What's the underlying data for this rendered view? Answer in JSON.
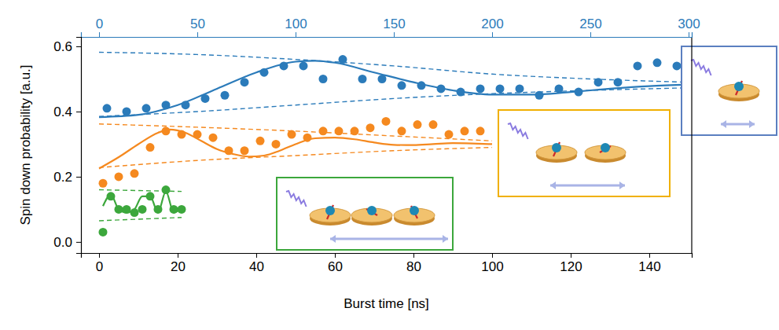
{
  "chart_data": {
    "type": "scatter",
    "x_label": "Burst time [ns]",
    "y_label": "Spin down probability [a.u.]",
    "xlim": [
      -4.6,
      150.8
    ],
    "xticks": [
      0,
      20,
      40,
      60,
      80,
      100,
      120,
      140
    ],
    "x2lim": [
      -9.2,
      301.6
    ],
    "x2ticks": [
      0,
      50,
      100,
      150,
      200,
      250,
      300
    ],
    "x2_color": "#2b7bba",
    "ylim": [
      -0.034,
      0.629
    ],
    "yticks": [
      {
        "value": 0,
        "label": "0.0"
      },
      0.2,
      0.4,
      0.6
    ],
    "series": [
      {
        "type": "line",
        "line_style": "dashed",
        "color": "#2b7bba",
        "axis": "x2",
        "x": [
          0,
          50,
          100,
          150,
          200,
          250,
          300
        ],
        "values": [
          0.582,
          0.575,
          0.56,
          0.54,
          0.515,
          0.5,
          0.49
        ]
      },
      {
        "type": "line",
        "line_style": "dashed",
        "color": "#2b7bba",
        "axis": "x2",
        "x": [
          0,
          50,
          100,
          150,
          200,
          250,
          300
        ],
        "values": [
          0.385,
          0.4,
          0.42,
          0.44,
          0.455,
          0.465,
          0.473
        ]
      },
      {
        "type": "line",
        "line_style": "solid",
        "color": "#2b7bba",
        "axis": "x2",
        "x": [
          0,
          20,
          40,
          60,
          80,
          100,
          110,
          120,
          140,
          160,
          180,
          200,
          220,
          240,
          260,
          280,
          300
        ],
        "values": [
          0.383,
          0.39,
          0.42,
          0.47,
          0.52,
          0.553,
          0.556,
          0.55,
          0.52,
          0.49,
          0.465,
          0.452,
          0.452,
          0.46,
          0.47,
          0.478,
          0.483
        ]
      },
      {
        "type": "scatter",
        "marker": "circle",
        "color": "#2b7bba",
        "axis": "x2",
        "x": [
          4,
          14,
          24,
          34,
          44,
          54,
          64,
          74,
          84,
          94,
          104,
          114,
          124,
          134,
          144,
          154,
          164,
          174,
          184,
          194,
          204,
          214,
          224,
          234,
          244,
          254,
          264,
          274,
          284,
          294
        ],
        "values": [
          0.41,
          0.4,
          0.41,
          0.42,
          0.42,
          0.44,
          0.45,
          0.49,
          0.52,
          0.54,
          0.54,
          0.5,
          0.56,
          0.5,
          0.5,
          0.48,
          0.48,
          0.47,
          0.46,
          0.47,
          0.47,
          0.47,
          0.45,
          0.47,
          0.46,
          0.49,
          0.49,
          0.54,
          0.55,
          0.54
        ]
      },
      {
        "type": "line",
        "line_style": "dashed",
        "color": "#f5891f",
        "x": [
          0,
          25,
          50,
          75,
          100
        ],
        "values": [
          0.362,
          0.352,
          0.34,
          0.325,
          0.31
        ]
      },
      {
        "type": "line",
        "line_style": "dashed",
        "color": "#f5891f",
        "x": [
          0,
          25,
          50,
          75,
          100
        ],
        "values": [
          0.228,
          0.25,
          0.265,
          0.28,
          0.29
        ]
      },
      {
        "type": "line",
        "line_style": "solid",
        "color": "#f5891f",
        "x": [
          0,
          5,
          10,
          15,
          18,
          22,
          26,
          30,
          34,
          38,
          42,
          46,
          50,
          55,
          60,
          65,
          70,
          75,
          80,
          85,
          90,
          95,
          100
        ],
        "values": [
          0.225,
          0.26,
          0.3,
          0.335,
          0.345,
          0.335,
          0.31,
          0.285,
          0.27,
          0.262,
          0.265,
          0.28,
          0.3,
          0.318,
          0.32,
          0.315,
          0.305,
          0.298,
          0.297,
          0.3,
          0.303,
          0.302,
          0.3
        ]
      },
      {
        "type": "scatter",
        "marker": "circle",
        "color": "#f5891f",
        "x": [
          1,
          5,
          9,
          13,
          17,
          21,
          25,
          29,
          33,
          37,
          41,
          45,
          49,
          53,
          57,
          61,
          65,
          69,
          73,
          77,
          81,
          85,
          89,
          93,
          97
        ],
        "values": [
          0.18,
          0.2,
          0.21,
          0.29,
          0.34,
          0.33,
          0.33,
          0.32,
          0.28,
          0.28,
          0.31,
          0.3,
          0.33,
          0.32,
          0.34,
          0.34,
          0.34,
          0.35,
          0.37,
          0.34,
          0.36,
          0.36,
          0.33,
          0.34,
          0.34
        ]
      },
      {
        "type": "line",
        "line_style": "dashed",
        "color": "#3ca73c",
        "x": [
          0,
          21
        ],
        "values": [
          0.16,
          0.155
        ]
      },
      {
        "type": "line",
        "line_style": "dashed",
        "color": "#3ca73c",
        "x": [
          0,
          21
        ],
        "values": [
          0.065,
          0.075
        ]
      },
      {
        "type": "line",
        "line_style": "solid",
        "color": "#3ca73c",
        "x": [
          1,
          3,
          5,
          7,
          9,
          11,
          13,
          15,
          17,
          19,
          21
        ],
        "values": [
          0.11,
          0.145,
          0.1,
          0.09,
          0.1,
          0.14,
          0.14,
          0.09,
          0.155,
          0.09,
          0.105
        ]
      },
      {
        "type": "scatter",
        "marker": "circle",
        "color": "#3ca73c",
        "x": [
          1,
          3,
          5,
          7,
          9,
          11,
          13,
          15,
          17,
          19,
          21
        ],
        "values": [
          0.03,
          0.14,
          0.1,
          0.1,
          0.09,
          0.1,
          0.14,
          0.1,
          0.16,
          0.1,
          0.1
        ]
      }
    ]
  }
}
